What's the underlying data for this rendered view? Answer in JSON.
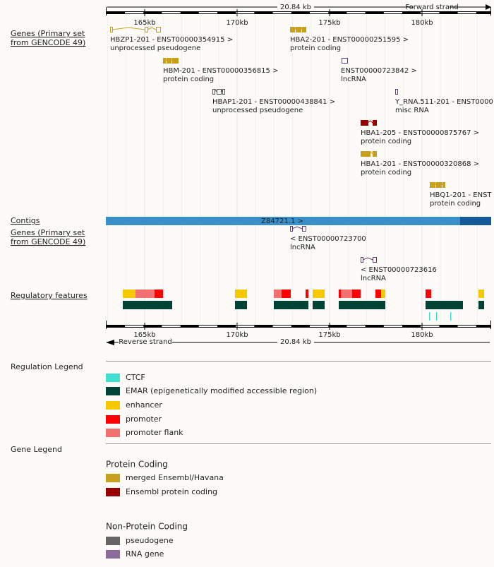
{
  "scale": {
    "length": "20.84 kb",
    "forward_strand": "Forward strand",
    "reverse_strand": "Reverse strand",
    "ticks": [
      "165kb",
      "170kb",
      "175kb",
      "180kb"
    ]
  },
  "tracks": {
    "genes_forward": {
      "label": [
        "Genes (Primary set",
        "from GENCODE 49)"
      ],
      "genes": [
        {
          "name": "HBZP1-201 - ENST00000354915 >",
          "biotype": "unprocessed pseudogene"
        },
        {
          "name": "HBA2-201 - ENST00000251595 >",
          "biotype": "protein coding"
        },
        {
          "name": "HBM-201 - ENST00000356815 >",
          "biotype": "protein coding"
        },
        {
          "name": "ENST00000723842 >",
          "biotype": "lncRNA"
        },
        {
          "name": "HBAP1-201 - ENST00000438841 >",
          "biotype": "unprocessed pseudogene"
        },
        {
          "name": "Y_RNA.511-201 - ENST0000",
          "biotype": "misc RNA"
        },
        {
          "name": "HBA1-205 - ENST00000875767 >",
          "biotype": "protein coding"
        },
        {
          "name": "HBA1-201 - ENST00000320868 >",
          "biotype": "protein coding"
        },
        {
          "name": "HBQ1-201 - ENST",
          "biotype": "protein coding"
        }
      ]
    },
    "contigs": {
      "label": "Contigs",
      "name": "Z84721.1 >"
    },
    "genes_reverse": {
      "label": [
        "Genes (Primary set",
        "from GENCODE 49)"
      ],
      "genes": [
        {
          "name": "< ENST00000723700",
          "biotype": "lncRNA"
        },
        {
          "name": "< ENST00000723616",
          "biotype": "lncRNA"
        }
      ]
    },
    "regulatory": {
      "label": "Regulatory features"
    }
  },
  "regulation_legend": {
    "title": "Regulation Legend",
    "items": [
      "CTCF",
      "EMAR (epigenetically modified accessible region)",
      "enhancer",
      "promoter",
      "promoter flank"
    ]
  },
  "gene_legend": {
    "title": "Gene Legend",
    "groups": [
      {
        "title": "Protein Coding",
        "items": [
          "merged Ensembl/Havana",
          "Ensembl protein coding"
        ]
      },
      {
        "title": "Non-Protein Coding",
        "items": [
          "pseudogene",
          "RNA gene"
        ]
      }
    ]
  }
}
